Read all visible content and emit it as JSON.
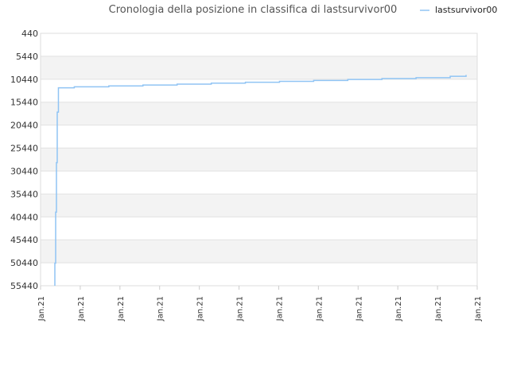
{
  "chart_data": {
    "type": "line",
    "title": "Cronologia della posizione in classifica di lastsurvivor00",
    "xlabel": "",
    "ylabel": "",
    "y_inverted": true,
    "ylim": [
      440,
      55440
    ],
    "y_ticks": [
      440,
      5440,
      10440,
      15440,
      20440,
      25440,
      30440,
      35440,
      40440,
      45440,
      50440,
      55440
    ],
    "x_tick_labels": [
      "Jan.21",
      "Jan.21",
      "Jan.21",
      "Jan.21",
      "Jan.21",
      "Jan.21",
      "Jan.21",
      "Jan.21",
      "Jan.21",
      "Jan.21",
      "Jan.21",
      "Jan.21"
    ],
    "xlim": [
      0,
      11
    ],
    "grid": true,
    "legend_position": "top-right",
    "series": [
      {
        "name": "lastsurvivor00",
        "color": "#90c4f4",
        "points": [
          [
            0.36,
            55440
          ],
          [
            0.36,
            50500
          ],
          [
            0.38,
            50500
          ],
          [
            0.38,
            39400
          ],
          [
            0.4,
            39400
          ],
          [
            0.4,
            28600
          ],
          [
            0.42,
            28600
          ],
          [
            0.42,
            17600
          ],
          [
            0.45,
            17600
          ],
          [
            0.45,
            12300
          ],
          [
            0.85,
            12300
          ],
          [
            0.85,
            12100
          ],
          [
            1.72,
            12100
          ],
          [
            1.72,
            11900
          ],
          [
            2.58,
            11900
          ],
          [
            2.58,
            11700
          ],
          [
            3.44,
            11700
          ],
          [
            3.44,
            11500
          ],
          [
            4.3,
            11500
          ],
          [
            4.3,
            11300
          ],
          [
            5.16,
            11300
          ],
          [
            5.16,
            11100
          ],
          [
            6.02,
            11100
          ],
          [
            6.02,
            10900
          ],
          [
            6.88,
            10900
          ],
          [
            6.88,
            10700
          ],
          [
            7.74,
            10700
          ],
          [
            7.74,
            10500
          ],
          [
            8.6,
            10500
          ],
          [
            8.6,
            10300
          ],
          [
            9.46,
            10300
          ],
          [
            9.46,
            10100
          ],
          [
            10.32,
            10100
          ],
          [
            10.32,
            9800
          ],
          [
            10.72,
            9800
          ],
          [
            10.72,
            9500
          ]
        ]
      }
    ]
  }
}
